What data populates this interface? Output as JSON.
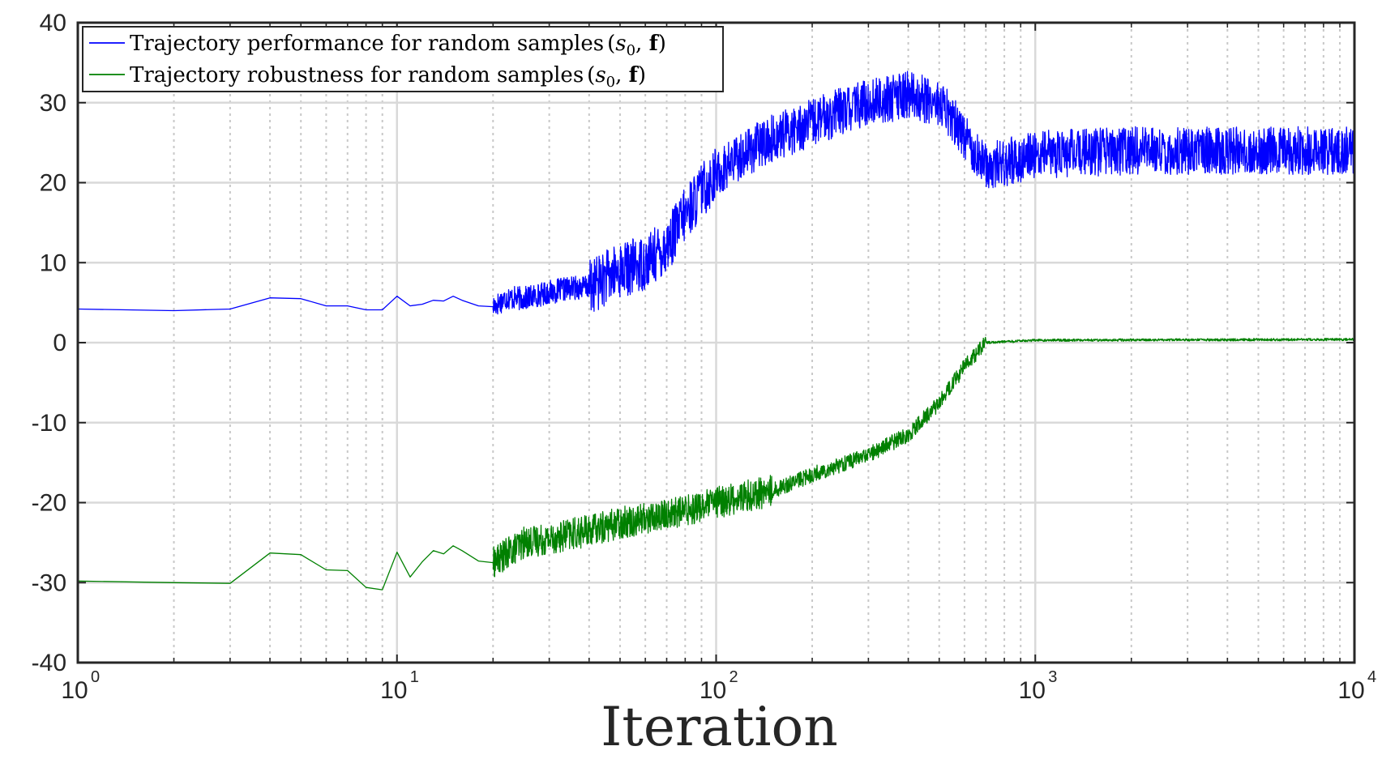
{
  "chart_data": {
    "type": "line",
    "title": "",
    "xlabel": "Iteration",
    "ylabel": "",
    "xscale": "log",
    "xlim": [
      1,
      10000
    ],
    "ylim": [
      -40,
      40
    ],
    "yticks": [
      40,
      30,
      20,
      10,
      0,
      -10,
      -20,
      -30,
      -40
    ],
    "ytick_labels": [
      "40",
      "30",
      "20",
      "10",
      "0",
      "-10",
      "-20",
      "-30",
      "-40"
    ],
    "xticks": [
      {
        "value": 1,
        "base": "10",
        "exp": "0"
      },
      {
        "value": 10,
        "base": "10",
        "exp": "1"
      },
      {
        "value": 100,
        "base": "10",
        "exp": "2"
      },
      {
        "value": 1000,
        "base": "10",
        "exp": "3"
      },
      {
        "value": 10000,
        "base": "10",
        "exp": "4"
      }
    ],
    "grid": true,
    "legend_position": "top-left",
    "series": [
      {
        "name": "Trajectory performance for random samples",
        "math_suffix": "(s0, f)",
        "color": "#0000ff",
        "noise": [
          {
            "from": 1,
            "to": 20,
            "amp": 0
          },
          {
            "from": 20,
            "to": 40,
            "amp": 1.5
          },
          {
            "from": 40,
            "to": 100,
            "amp": 3.5
          },
          {
            "from": 100,
            "to": 300,
            "amp": 3
          },
          {
            "from": 300,
            "to": 700,
            "amp": 3
          },
          {
            "from": 700,
            "to": 10000,
            "amp": 3
          }
        ],
        "points": [
          [
            1,
            4.2
          ],
          [
            2,
            4.0
          ],
          [
            3,
            4.2
          ],
          [
            4,
            5.6
          ],
          [
            5,
            5.5
          ],
          [
            6,
            4.6
          ],
          [
            7,
            4.6
          ],
          [
            8,
            4.1
          ],
          [
            9,
            4.1
          ],
          [
            10,
            5.8
          ],
          [
            11,
            4.6
          ],
          [
            12,
            4.8
          ],
          [
            13,
            5.3
          ],
          [
            14,
            5.2
          ],
          [
            15,
            5.8
          ],
          [
            16,
            5.3
          ],
          [
            18,
            4.6
          ],
          [
            20,
            4.5
          ],
          [
            22,
            5.6
          ],
          [
            25,
            5.5
          ],
          [
            30,
            6.3
          ],
          [
            35,
            6.8
          ],
          [
            40,
            7.0
          ],
          [
            50,
            9.0
          ],
          [
            60,
            10.0
          ],
          [
            70,
            12.0
          ],
          [
            80,
            16.0
          ],
          [
            90,
            19.0
          ],
          [
            100,
            21.0
          ],
          [
            120,
            23.5
          ],
          [
            150,
            25.5
          ],
          [
            200,
            27.5
          ],
          [
            250,
            29.0
          ],
          [
            300,
            30.0
          ],
          [
            400,
            31.0
          ],
          [
            500,
            30.0
          ],
          [
            600,
            26.0
          ],
          [
            700,
            22.0
          ],
          [
            800,
            22.5
          ],
          [
            1000,
            23.5
          ],
          [
            2000,
            24.0
          ],
          [
            5000,
            24.0
          ],
          [
            10000,
            24.0
          ]
        ]
      },
      {
        "name": "Trajectory robustness for random samples",
        "math_suffix": "(s0, f)",
        "color": "#008000",
        "noise": [
          {
            "from": 1,
            "to": 20,
            "amp": 0
          },
          {
            "from": 20,
            "to": 60,
            "amp": 2.0
          },
          {
            "from": 60,
            "to": 150,
            "amp": 2.0
          },
          {
            "from": 150,
            "to": 400,
            "amp": 1.0
          },
          {
            "from": 400,
            "to": 700,
            "amp": 1.0
          },
          {
            "from": 700,
            "to": 10000,
            "amp": 0.15
          }
        ],
        "points": [
          [
            1,
            -29.8
          ],
          [
            2,
            -30.0
          ],
          [
            3,
            -30.1
          ],
          [
            4,
            -26.3
          ],
          [
            5,
            -26.5
          ],
          [
            6,
            -28.4
          ],
          [
            7,
            -28.5
          ],
          [
            8,
            -30.6
          ],
          [
            9,
            -30.9
          ],
          [
            10,
            -26.2
          ],
          [
            11,
            -29.3
          ],
          [
            12,
            -27.4
          ],
          [
            13,
            -26.0
          ],
          [
            14,
            -26.4
          ],
          [
            15,
            -25.4
          ],
          [
            16,
            -26.0
          ],
          [
            18,
            -27.3
          ],
          [
            20,
            -27.5
          ],
          [
            25,
            -25.0
          ],
          [
            30,
            -24.5
          ],
          [
            40,
            -23.5
          ],
          [
            50,
            -22.5
          ],
          [
            70,
            -21.5
          ],
          [
            100,
            -20.0
          ],
          [
            150,
            -18.5
          ],
          [
            200,
            -16.5
          ],
          [
            300,
            -14.0
          ],
          [
            400,
            -11.5
          ],
          [
            500,
            -7.5
          ],
          [
            600,
            -3.0
          ],
          [
            700,
            0.0
          ],
          [
            1000,
            0.3
          ],
          [
            10000,
            0.4
          ]
        ]
      }
    ]
  }
}
